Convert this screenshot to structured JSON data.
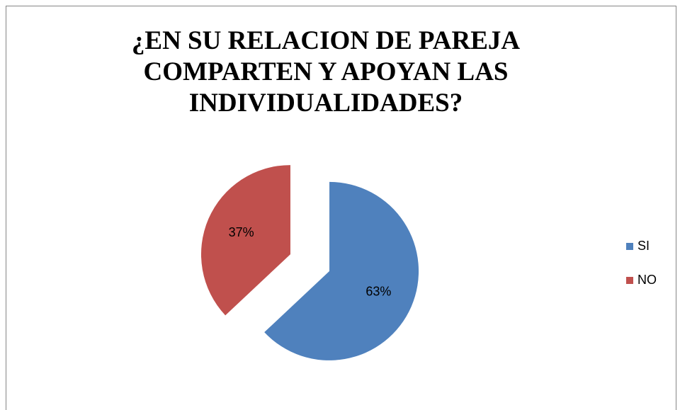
{
  "chart_data": {
    "type": "pie",
    "title": "¿EN SU RELACION DE PAREJA COMPARTEN Y APOYAN LAS INDIVIDUALIDADES?",
    "categories": [
      "SI",
      "NO"
    ],
    "values": [
      63,
      37
    ],
    "value_labels": [
      "63%",
      "37%"
    ],
    "colors": [
      "#4f81bd",
      "#c0504d"
    ],
    "legend": "right"
  }
}
